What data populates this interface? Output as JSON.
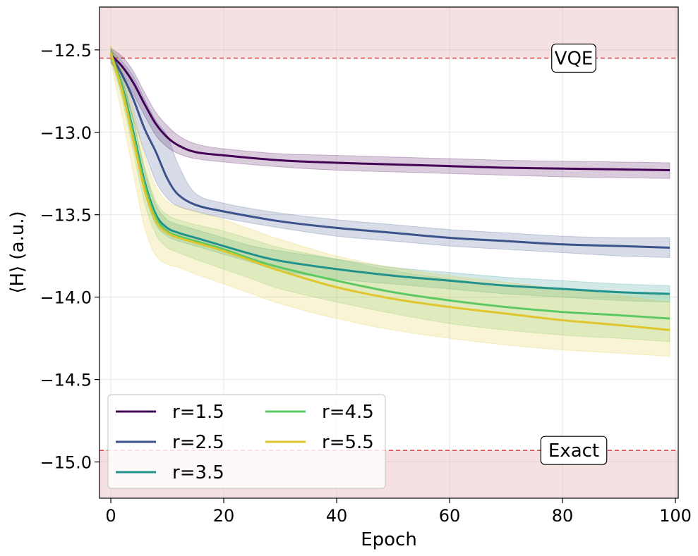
{
  "chart_data": {
    "type": "line",
    "xlabel": "Epoch",
    "ylabel": "⟨H⟩ (a.u.)",
    "xlim": [
      -2,
      100.5
    ],
    "ylim": [
      -15.22,
      -12.24
    ],
    "xticks": [
      0,
      20,
      40,
      60,
      80,
      100
    ],
    "yticks": [
      -12.5,
      -13.0,
      -13.5,
      -14.0,
      -14.5,
      -15.0
    ],
    "xtick_labels": [
      "0",
      "20",
      "40",
      "60",
      "80",
      "100"
    ],
    "ytick_labels": [
      "−12.5",
      "−13.0",
      "−13.5",
      "−14.0",
      "−14.5",
      "−15.0"
    ],
    "grid": true,
    "legend_position": "lower-left",
    "legend_columns": 2,
    "reference_lines": [
      {
        "label": "VQE",
        "y": -12.55,
        "label_x": 82,
        "color": "#d62728",
        "band": "above"
      },
      {
        "label": "Exact",
        "y": -14.93,
        "label_x": 82,
        "color": "#d62728",
        "band": "below"
      }
    ],
    "band_color": "#d6878a",
    "series": [
      {
        "name": "r=1.5",
        "color": "#440154",
        "x": [
          0,
          2,
          4,
          6,
          8,
          10,
          12,
          15,
          20,
          30,
          40,
          50,
          60,
          70,
          80,
          90,
          99
        ],
        "y": [
          -12.53,
          -12.6,
          -12.7,
          -12.83,
          -12.95,
          -13.03,
          -13.08,
          -13.12,
          -13.14,
          -13.17,
          -13.185,
          -13.195,
          -13.205,
          -13.215,
          -13.22,
          -13.225,
          -13.23
        ],
        "lower": [
          -12.58,
          -12.66,
          -12.77,
          -12.9,
          -13.02,
          -13.09,
          -13.13,
          -13.16,
          -13.18,
          -13.21,
          -13.23,
          -13.24,
          -13.25,
          -13.26,
          -13.27,
          -13.275,
          -13.28
        ],
        "upper": [
          -12.49,
          -12.54,
          -12.63,
          -12.76,
          -12.88,
          -12.96,
          -13.02,
          -13.07,
          -13.1,
          -13.13,
          -13.14,
          -13.15,
          -13.16,
          -13.17,
          -13.175,
          -13.18,
          -13.185
        ]
      },
      {
        "name": "r=2.5",
        "color": "#3b528b",
        "x": [
          0,
          2,
          4,
          6,
          8,
          10,
          12,
          15,
          20,
          30,
          40,
          50,
          60,
          70,
          80,
          90,
          99
        ],
        "y": [
          -12.53,
          -12.65,
          -12.8,
          -12.98,
          -13.12,
          -13.28,
          -13.38,
          -13.44,
          -13.48,
          -13.54,
          -13.58,
          -13.61,
          -13.64,
          -13.66,
          -13.68,
          -13.69,
          -13.7
        ],
        "lower": [
          -12.56,
          -12.72,
          -12.92,
          -13.12,
          -13.3,
          -13.4,
          -13.45,
          -13.48,
          -13.52,
          -13.58,
          -13.63,
          -13.66,
          -13.69,
          -13.71,
          -13.73,
          -13.75,
          -13.76
        ],
        "upper": [
          -12.5,
          -12.57,
          -12.66,
          -12.8,
          -12.93,
          -13.02,
          -13.2,
          -13.37,
          -13.43,
          -13.49,
          -13.53,
          -13.56,
          -13.59,
          -13.61,
          -13.63,
          -13.64,
          -13.64
        ]
      },
      {
        "name": "r=3.5",
        "color": "#21918c",
        "x": [
          0,
          2,
          4,
          6,
          8,
          10,
          12,
          15,
          20,
          25,
          30,
          40,
          50,
          60,
          70,
          80,
          90,
          99
        ],
        "y": [
          -12.52,
          -12.72,
          -13.0,
          -13.3,
          -13.5,
          -13.58,
          -13.61,
          -13.64,
          -13.69,
          -13.74,
          -13.78,
          -13.83,
          -13.87,
          -13.9,
          -13.93,
          -13.95,
          -13.97,
          -13.98
        ],
        "lower": [
          -12.55,
          -12.77,
          -13.07,
          -13.37,
          -13.56,
          -13.63,
          -13.66,
          -13.69,
          -13.74,
          -13.79,
          -13.84,
          -13.89,
          -13.92,
          -13.95,
          -13.98,
          -14.0,
          -14.02,
          -14.03
        ],
        "upper": [
          -12.49,
          -12.67,
          -12.93,
          -13.23,
          -13.44,
          -13.53,
          -13.56,
          -13.59,
          -13.64,
          -13.69,
          -13.72,
          -13.77,
          -13.82,
          -13.85,
          -13.88,
          -13.9,
          -13.92,
          -13.93
        ]
      },
      {
        "name": "r=4.5",
        "color": "#5ec962",
        "x": [
          0,
          2,
          4,
          6,
          8,
          10,
          12,
          15,
          20,
          25,
          30,
          40,
          50,
          60,
          70,
          80,
          90,
          99
        ],
        "y": [
          -12.52,
          -12.73,
          -13.02,
          -13.32,
          -13.52,
          -13.6,
          -13.63,
          -13.66,
          -13.71,
          -13.77,
          -13.82,
          -13.9,
          -13.97,
          -14.02,
          -14.06,
          -14.09,
          -14.11,
          -14.13
        ],
        "lower": [
          -12.56,
          -12.8,
          -13.12,
          -13.43,
          -13.62,
          -13.7,
          -13.73,
          -13.77,
          -13.83,
          -13.89,
          -13.95,
          -14.03,
          -14.1,
          -14.16,
          -14.2,
          -14.23,
          -14.25,
          -14.27
        ],
        "upper": [
          -12.48,
          -12.66,
          -12.92,
          -13.21,
          -13.42,
          -13.5,
          -13.53,
          -13.56,
          -13.6,
          -13.65,
          -13.7,
          -13.77,
          -13.84,
          -13.89,
          -13.93,
          -13.95,
          -13.97,
          -13.99
        ]
      },
      {
        "name": "r=5.5",
        "color": "#e0c62e",
        "x": [
          0,
          2,
          4,
          6,
          8,
          10,
          12,
          15,
          20,
          25,
          30,
          40,
          50,
          60,
          70,
          80,
          90,
          99
        ],
        "y": [
          -12.52,
          -12.75,
          -13.05,
          -13.35,
          -13.54,
          -13.61,
          -13.64,
          -13.67,
          -13.72,
          -13.78,
          -13.84,
          -13.94,
          -14.01,
          -14.06,
          -14.1,
          -14.14,
          -14.17,
          -14.2
        ],
        "lower": [
          -12.57,
          -12.9,
          -13.25,
          -13.58,
          -13.75,
          -13.8,
          -13.82,
          -13.86,
          -13.92,
          -13.98,
          -14.04,
          -14.13,
          -14.2,
          -14.25,
          -14.29,
          -14.32,
          -14.34,
          -14.36
        ],
        "upper": [
          -12.47,
          -12.62,
          -12.86,
          -13.14,
          -13.33,
          -13.42,
          -13.45,
          -13.48,
          -13.53,
          -13.59,
          -13.65,
          -13.75,
          -13.82,
          -13.87,
          -13.91,
          -13.95,
          -13.99,
          -14.03
        ]
      }
    ]
  }
}
